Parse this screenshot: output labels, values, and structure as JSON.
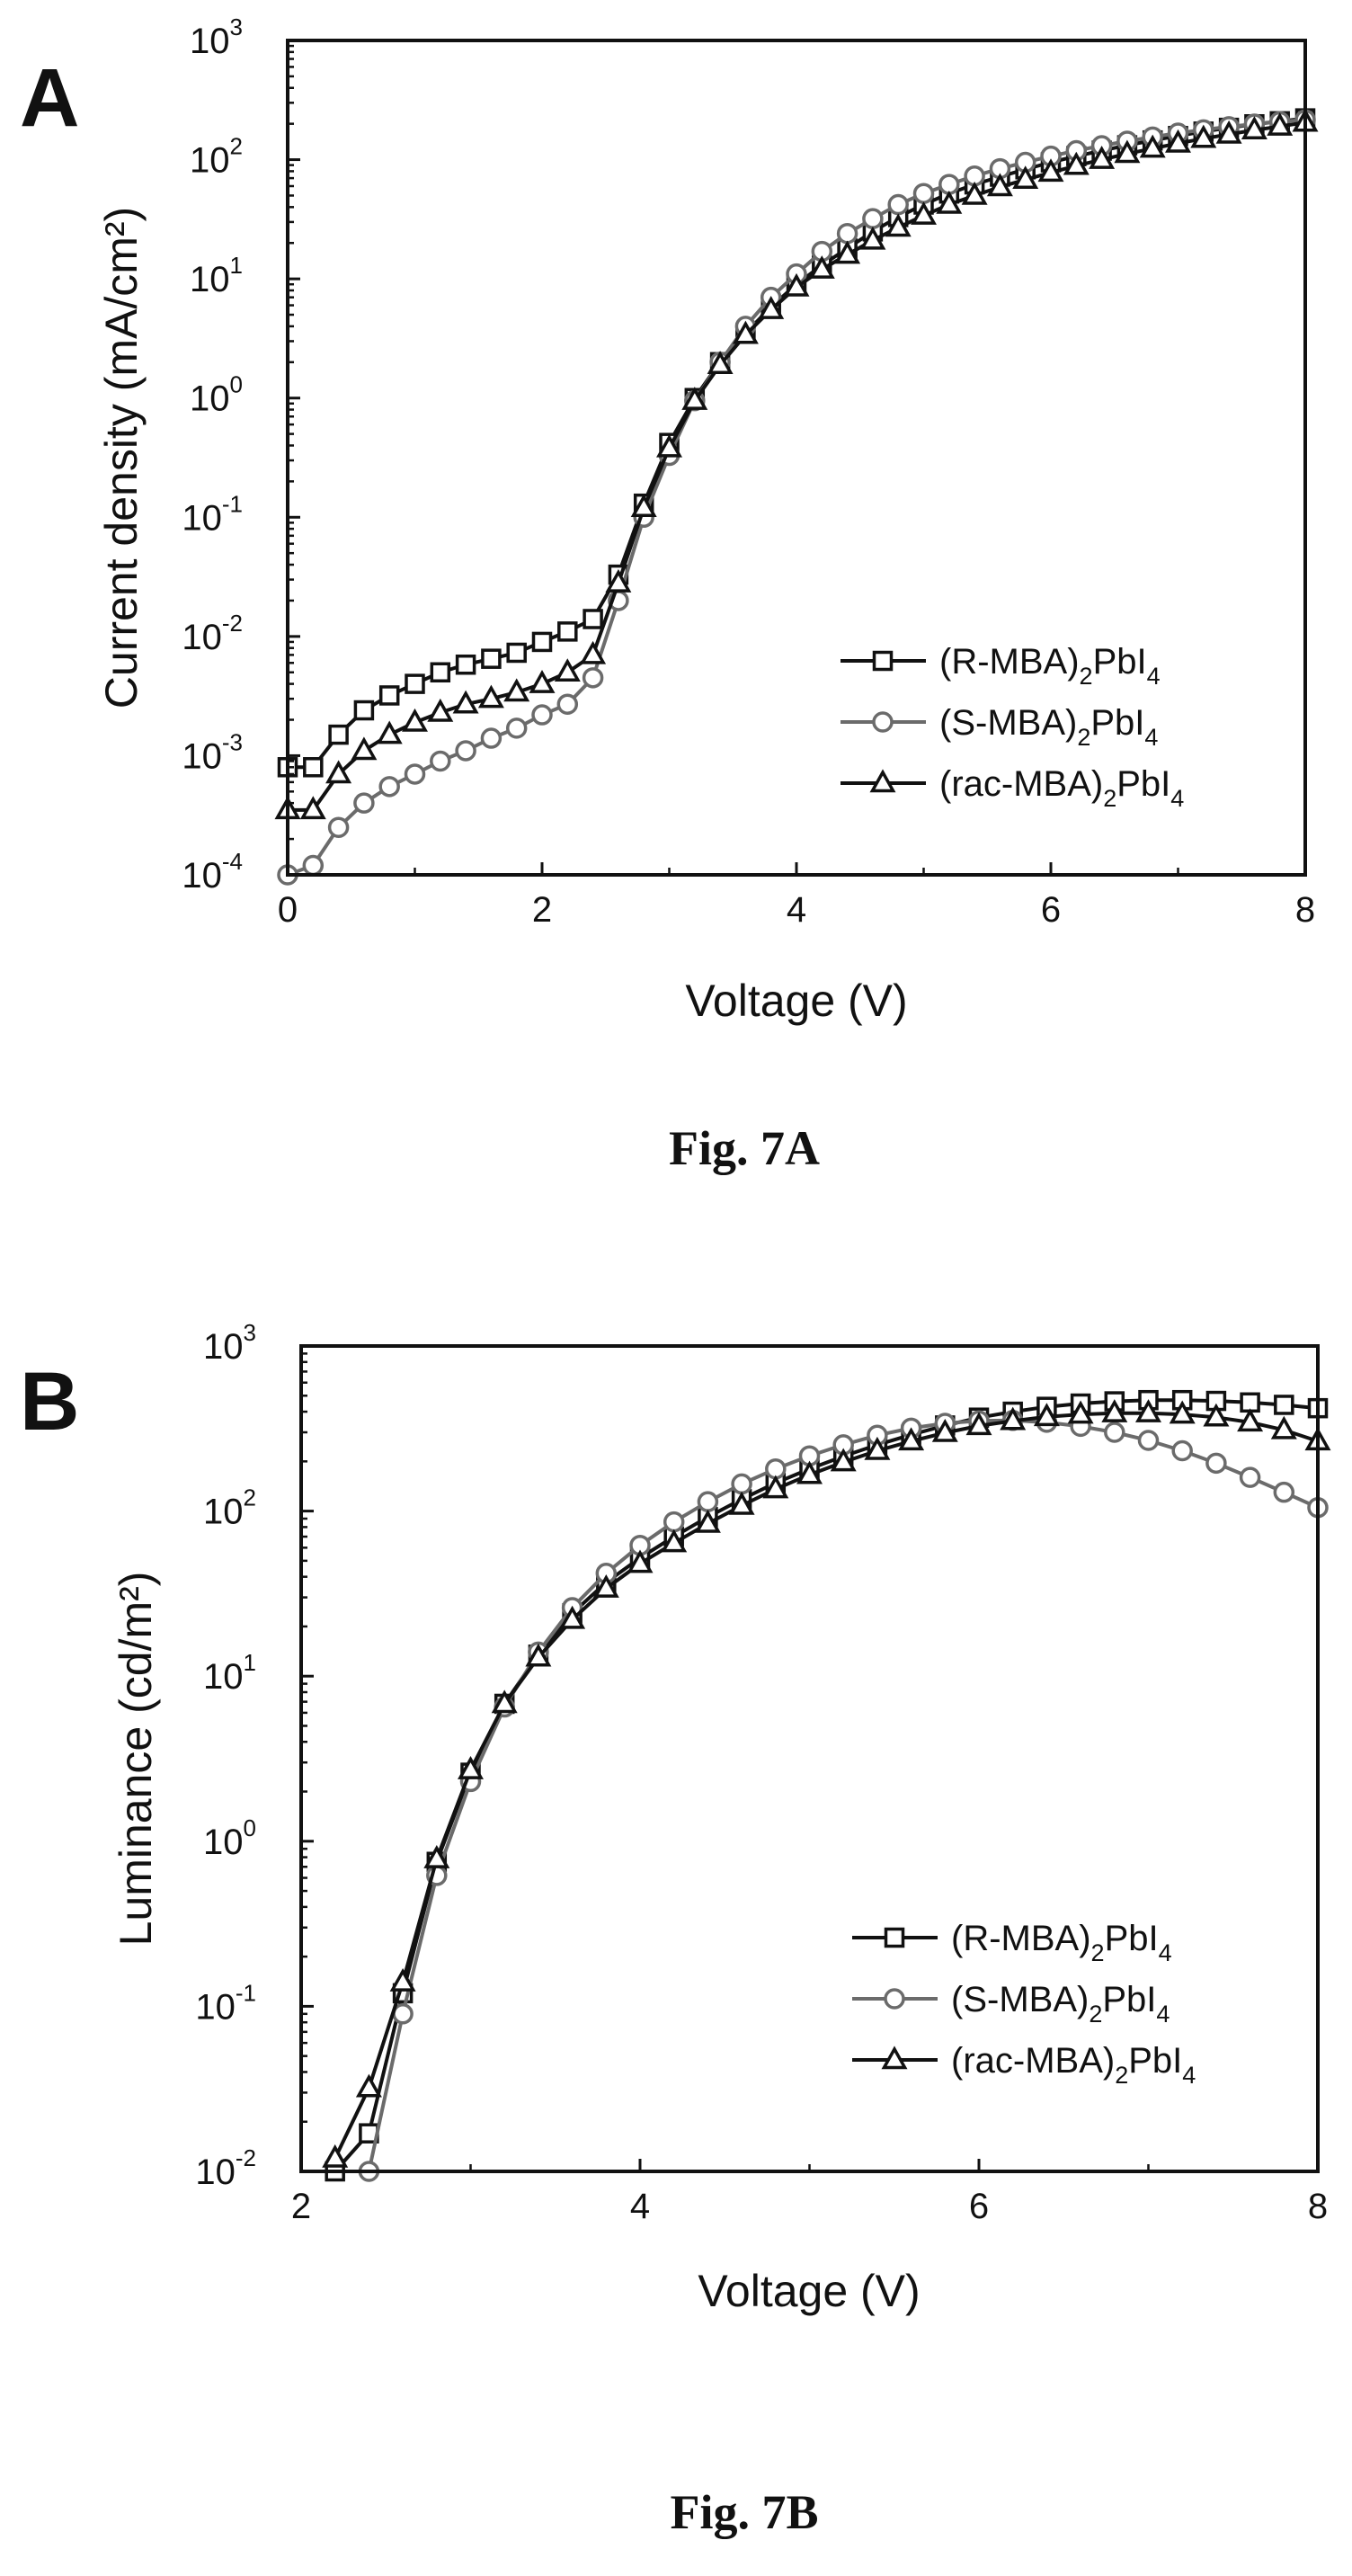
{
  "chart_data": [
    {
      "type": "line",
      "panel_label": "A",
      "caption": "Fig. 7A",
      "xlabel": "Voltage (V)",
      "ylabel": "Current density (mA/cm²)",
      "y_scale": "log",
      "xlim": [
        0,
        8
      ],
      "ylim": [
        0.0001,
        1000
      ],
      "xticks": [
        "0",
        "2",
        "4",
        "6",
        "8"
      ],
      "yticks": [
        {
          "base": "10",
          "exp": "-4",
          "value": 0.0001
        },
        {
          "base": "10",
          "exp": "-3",
          "value": 0.001
        },
        {
          "base": "10",
          "exp": "-2",
          "value": 0.01
        },
        {
          "base": "10",
          "exp": "-1",
          "value": 0.1
        },
        {
          "base": "10",
          "exp": "0",
          "value": 1
        },
        {
          "base": "10",
          "exp": "1",
          "value": 10
        },
        {
          "base": "10",
          "exp": "2",
          "value": 100
        },
        {
          "base": "10",
          "exp": "3",
          "value": 1000
        }
      ],
      "legend_position": "lower-right",
      "series": [
        {
          "name": "(R-MBA)₂PbI₄",
          "legend_main": "(R-MBA)",
          "legend_sub1": "2",
          "legend_mid": "PbI",
          "legend_sub2": "4",
          "marker": "square",
          "color": "#111111",
          "x": [
            0.0,
            0.2,
            0.4,
            0.6,
            0.8,
            1.0,
            1.2,
            1.4,
            1.6,
            1.8,
            2.0,
            2.2,
            2.4,
            2.6,
            2.8,
            3.0,
            3.2,
            3.4,
            3.6,
            3.8,
            4.0,
            4.2,
            4.4,
            4.6,
            4.8,
            5.0,
            5.2,
            5.4,
            5.6,
            5.8,
            6.0,
            6.2,
            6.4,
            6.6,
            6.8,
            7.0,
            7.2,
            7.4,
            7.6,
            7.8,
            8.0
          ],
          "y": [
            0.0008,
            0.0008,
            0.0015,
            0.0024,
            0.0032,
            0.004,
            0.005,
            0.0058,
            0.0065,
            0.0073,
            0.009,
            0.011,
            0.014,
            0.033,
            0.13,
            0.42,
            1.0,
            2.0,
            3.5,
            5.8,
            9.0,
            13.0,
            18.0,
            25.0,
            33.0,
            42.0,
            52.0,
            62.0,
            72.0,
            83.0,
            95.0,
            107.0,
            119.0,
            132.0,
            145.0,
            158.0,
            172.0,
            185.0,
            198.0,
            210.0,
            222.0
          ]
        },
        {
          "name": "(S-MBA)₂PbI₄",
          "legend_main": "(S-MBA)",
          "legend_sub1": "2",
          "legend_mid": "PbI",
          "legend_sub2": "4",
          "marker": "circle",
          "color": "#6b6b6b",
          "x": [
            0.0,
            0.2,
            0.4,
            0.6,
            0.8,
            1.0,
            1.2,
            1.4,
            1.6,
            1.8,
            2.0,
            2.2,
            2.4,
            2.6,
            2.8,
            3.0,
            3.2,
            3.4,
            3.6,
            3.8,
            4.0,
            4.2,
            4.4,
            4.6,
            4.8,
            5.0,
            5.2,
            5.4,
            5.6,
            5.8,
            6.0,
            6.2,
            6.4,
            6.6,
            6.8,
            7.0,
            7.2,
            7.4,
            7.6,
            7.8,
            8.0
          ],
          "y": [
            0.0001,
            0.00012,
            0.00025,
            0.0004,
            0.00055,
            0.0007,
            0.0009,
            0.0011,
            0.0014,
            0.0017,
            0.0022,
            0.0027,
            0.0045,
            0.02,
            0.1,
            0.33,
            0.95,
            2.0,
            4.0,
            7.0,
            11.0,
            17.0,
            24.0,
            32.0,
            42.0,
            52.0,
            62.0,
            73.0,
            84.0,
            95.0,
            107.0,
            119.0,
            131.0,
            143.0,
            155.0,
            167.0,
            178.0,
            189.0,
            199.0,
            208.0,
            216.0
          ]
        },
        {
          "name": "(rac-MBA)₂PbI₄",
          "legend_main": "(rac-MBA)",
          "legend_sub1": "2",
          "legend_mid": "PbI",
          "legend_sub2": "4",
          "marker": "triangle",
          "color": "#111111",
          "x": [
            0.0,
            0.2,
            0.4,
            0.6,
            0.8,
            1.0,
            1.2,
            1.4,
            1.6,
            1.8,
            2.0,
            2.2,
            2.4,
            2.6,
            2.8,
            3.0,
            3.2,
            3.4,
            3.6,
            3.8,
            4.0,
            4.2,
            4.4,
            4.6,
            4.8,
            5.0,
            5.2,
            5.4,
            5.6,
            5.8,
            6.0,
            6.2,
            6.4,
            6.6,
            6.8,
            7.0,
            7.2,
            7.4,
            7.6,
            7.8,
            8.0
          ],
          "y": [
            0.00035,
            0.00035,
            0.0007,
            0.0011,
            0.0015,
            0.0019,
            0.0023,
            0.0027,
            0.003,
            0.0034,
            0.004,
            0.005,
            0.007,
            0.028,
            0.12,
            0.38,
            0.95,
            1.9,
            3.4,
            5.5,
            8.5,
            12.0,
            16.0,
            21.0,
            27.0,
            34.0,
            42.0,
            50.0,
            59.0,
            68.0,
            78.0,
            89.0,
            100.0,
            112.0,
            124.0,
            137.0,
            150.0,
            163.0,
            177.0,
            190.0,
            205.0
          ]
        }
      ]
    },
    {
      "type": "line",
      "panel_label": "B",
      "caption": "Fig. 7B",
      "xlabel": "Voltage (V)",
      "ylabel": "Luminance (cd/m²)",
      "y_scale": "log",
      "xlim": [
        2,
        8
      ],
      "ylim": [
        0.01,
        1000
      ],
      "xticks": [
        "2",
        "4",
        "6",
        "8"
      ],
      "yticks": [
        {
          "base": "10",
          "exp": "-2",
          "value": 0.01
        },
        {
          "base": "10",
          "exp": "-1",
          "value": 0.1
        },
        {
          "base": "10",
          "exp": "0",
          "value": 1
        },
        {
          "base": "10",
          "exp": "1",
          "value": 10
        },
        {
          "base": "10",
          "exp": "2",
          "value": 100
        },
        {
          "base": "10",
          "exp": "3",
          "value": 1000
        }
      ],
      "legend_position": "lower-right",
      "series": [
        {
          "name": "(R-MBA)₂PbI₄",
          "legend_main": "(R-MBA)",
          "legend_sub1": "2",
          "legend_mid": "PbI",
          "legend_sub2": "4",
          "marker": "square",
          "color": "#111111",
          "x": [
            2.2,
            2.4,
            2.6,
            2.8,
            3.0,
            3.2,
            3.4,
            3.6,
            3.8,
            4.0,
            4.2,
            4.4,
            4.6,
            4.8,
            5.0,
            5.2,
            5.4,
            5.6,
            5.8,
            6.0,
            6.2,
            6.4,
            6.6,
            6.8,
            7.0,
            7.2,
            7.4,
            7.6,
            7.8,
            8.0
          ],
          "y": [
            0.01,
            0.017,
            0.12,
            0.75,
            2.6,
            6.8,
            13.5,
            24.0,
            37.0,
            52.0,
            70.0,
            92.0,
            118.0,
            148.0,
            180.0,
            215.0,
            252.0,
            290.0,
            330.0,
            368.0,
            400.0,
            428.0,
            448.0,
            462.0,
            470.0,
            470.0,
            465.0,
            455.0,
            440.0,
            420.0
          ]
        },
        {
          "name": "(S-MBA)₂PbI₄",
          "legend_main": "(S-MBA)",
          "legend_sub1": "2",
          "legend_mid": "PbI",
          "legend_sub2": "4",
          "marker": "circle",
          "color": "#6b6b6b",
          "x": [
            2.4,
            2.6,
            2.8,
            3.0,
            3.2,
            3.4,
            3.6,
            3.8,
            4.0,
            4.2,
            4.4,
            4.6,
            4.8,
            5.0,
            5.2,
            5.4,
            5.6,
            5.8,
            6.0,
            6.2,
            6.4,
            6.6,
            6.8,
            7.0,
            7.2,
            7.4,
            7.6,
            7.8,
            8.0
          ],
          "y": [
            0.01,
            0.09,
            0.62,
            2.3,
            6.5,
            14.0,
            26.0,
            42.0,
            62.0,
            86.0,
            114.0,
            146.0,
            180.0,
            216.0,
            252.0,
            288.0,
            318.0,
            340.0,
            352.0,
            354.0,
            345.0,
            326.0,
            300.0,
            268.0,
            232.0,
            195.0,
            160.0,
            130.0,
            105.0
          ]
        },
        {
          "name": "(rac-MBA)₂PbI₄",
          "legend_main": "(rac-MBA)",
          "legend_sub1": "2",
          "legend_mid": "PbI",
          "legend_sub2": "4",
          "marker": "triangle",
          "color": "#111111",
          "x": [
            2.2,
            2.4,
            2.6,
            2.8,
            3.0,
            3.2,
            3.4,
            3.6,
            3.8,
            4.0,
            4.2,
            4.4,
            4.6,
            4.8,
            5.0,
            5.2,
            5.4,
            5.6,
            5.8,
            6.0,
            6.2,
            6.4,
            6.6,
            6.8,
            7.0,
            7.2,
            7.4,
            7.6,
            7.8,
            8.0
          ],
          "y": [
            0.012,
            0.032,
            0.14,
            0.78,
            2.7,
            6.8,
            13.0,
            22.0,
            34.0,
            48.0,
            64.0,
            84.0,
            108.0,
            136.0,
            166.0,
            198.0,
            232.0,
            265.0,
            298.0,
            328.0,
            352.0,
            372.0,
            385.0,
            392.0,
            392.0,
            385.0,
            370.0,
            345.0,
            310.0,
            265.0
          ]
        }
      ]
    }
  ]
}
